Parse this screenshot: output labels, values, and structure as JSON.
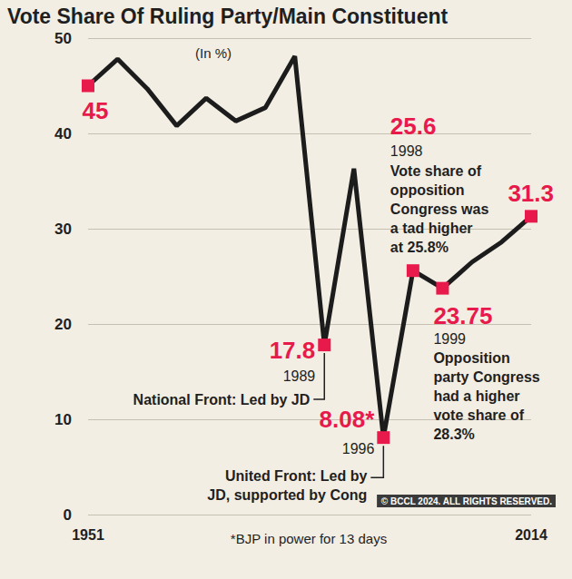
{
  "chart_data": {
    "type": "line",
    "title": "Vote Share Of Ruling Party/Main Constituent",
    "subtitle": "(In %)",
    "footnote": "*BJP in power for 13 days",
    "source": "© BCCL 2024. ALL RIGHTS RESERVED.",
    "categories": [
      "1951",
      null,
      null,
      null,
      null,
      null,
      null,
      null,
      null,
      null,
      null,
      null,
      null,
      null,
      null,
      "2014"
    ],
    "values": [
      45,
      47.8,
      44.7,
      40.8,
      43.7,
      41.3,
      42.7,
      48.1,
      17.8,
      36.3,
      8.08,
      25.6,
      23.75,
      26.5,
      28.6,
      31.3
    ],
    "value_labels": [
      "45",
      null,
      null,
      null,
      null,
      null,
      null,
      null,
      "17.8",
      null,
      "8.08*",
      "25.6",
      "23.75",
      null,
      null,
      "31.3"
    ],
    "point_notes": [
      null,
      null,
      null,
      null,
      null,
      null,
      null,
      null,
      {
        "year": "1989",
        "note": [
          "National Front: Led by JD"
        ]
      },
      null,
      {
        "year": "1996",
        "note": [
          "United Front: Led by",
          "JD, supported by Cong"
        ]
      },
      {
        "year": "1998",
        "note": [
          "Vote share of",
          "opposition",
          "Congress was",
          "a tad higher",
          "at 25.8%"
        ]
      },
      {
        "year": "1999",
        "note": [
          "Opposition",
          "party Congress",
          "had a higher",
          "vote share of",
          "28.3%"
        ]
      },
      null,
      null,
      null
    ],
    "color": "#1c1c1c",
    "colors": [
      "#e8194b",
      null,
      null,
      null,
      null,
      null,
      null,
      null,
      "#e8194b",
      null,
      "#e8194b",
      "#e8194b",
      "#e8194b",
      null,
      null,
      "#e8194b"
    ],
    "marker": "square",
    "ylim": [
      0,
      50
    ],
    "yticks": [
      0,
      10,
      20,
      30,
      40,
      50
    ],
    "grid": true
  }
}
